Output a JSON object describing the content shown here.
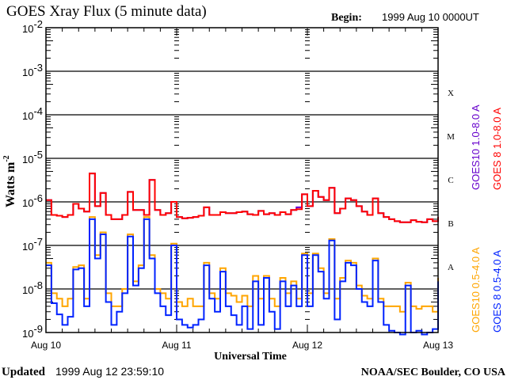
{
  "header": {
    "title": "GOES Xray Flux (5 minute data)",
    "begin_label": "Begin:",
    "begin_value": "1999 Aug 10 0000UT"
  },
  "footer": {
    "updated_label": "Updated",
    "updated_value": "1999 Aug 12 23:59:10",
    "credit": "NOAA/SEC Boulder, CO USA"
  },
  "colors": {
    "goes8_long": "#ff0000",
    "goes10_long": "#6600cc",
    "goes8_short": "#0022ff",
    "goes10_short": "#ffa500",
    "axis": "#000000"
  },
  "chart_data": {
    "type": "line",
    "title": "GOES Xray Flux (5 minute data)",
    "xlabel": "Universal Time",
    "ylabel": "Watts m",
    "ylabel_sup": "-2",
    "yscale": "log",
    "ylim": [
      1e-09,
      0.01
    ],
    "y_ticks": [
      {
        "base": "10",
        "exp": "-2"
      },
      {
        "base": "10",
        "exp": "-3"
      },
      {
        "base": "10",
        "exp": "-4"
      },
      {
        "base": "10",
        "exp": "-5"
      },
      {
        "base": "10",
        "exp": "-6"
      },
      {
        "base": "10",
        "exp": "-7"
      },
      {
        "base": "10",
        "exp": "-8"
      },
      {
        "base": "10",
        "exp": "-9"
      }
    ],
    "x_ticks": [
      "Aug 10",
      "Aug 11",
      "Aug 12",
      "Aug 13"
    ],
    "xlim": [
      "1999-08-10T00:00",
      "1999-08-13T00:00"
    ],
    "flare_classes": [
      "X",
      "M",
      "C",
      "B",
      "A"
    ],
    "grid": "horizontal lines at each decade",
    "legend_placement": "right, vertical",
    "x": [
      "1999-08-10T00:00",
      "1999-08-10T01:00",
      "1999-08-10T02:00",
      "1999-08-10T03:00",
      "1999-08-10T04:00",
      "1999-08-10T05:00",
      "1999-08-10T06:00",
      "1999-08-10T07:00",
      "1999-08-10T08:00",
      "1999-08-10T09:00",
      "1999-08-10T10:00",
      "1999-08-10T11:00",
      "1999-08-10T12:00",
      "1999-08-10T13:00",
      "1999-08-10T14:00",
      "1999-08-10T15:00",
      "1999-08-10T16:00",
      "1999-08-10T17:00",
      "1999-08-10T18:00",
      "1999-08-10T19:00",
      "1999-08-10T20:00",
      "1999-08-10T21:00",
      "1999-08-10T22:00",
      "1999-08-10T23:00",
      "1999-08-11T00:00",
      "1999-08-11T01:00",
      "1999-08-11T02:00",
      "1999-08-11T03:00",
      "1999-08-11T04:00",
      "1999-08-11T05:00",
      "1999-08-11T06:00",
      "1999-08-11T07:00",
      "1999-08-11T08:00",
      "1999-08-11T09:00",
      "1999-08-11T10:00",
      "1999-08-11T11:00",
      "1999-08-11T12:00",
      "1999-08-11T13:00",
      "1999-08-11T14:00",
      "1999-08-11T15:00",
      "1999-08-11T16:00",
      "1999-08-11T17:00",
      "1999-08-11T18:00",
      "1999-08-11T19:00",
      "1999-08-11T20:00",
      "1999-08-11T21:00",
      "1999-08-11T22:00",
      "1999-08-11T23:00",
      "1999-08-12T00:00",
      "1999-08-12T01:00",
      "1999-08-12T02:00",
      "1999-08-12T03:00",
      "1999-08-12T04:00",
      "1999-08-12T05:00",
      "1999-08-12T06:00",
      "1999-08-12T07:00",
      "1999-08-12T08:00",
      "1999-08-12T09:00",
      "1999-08-12T10:00",
      "1999-08-12T11:00",
      "1999-08-12T12:00",
      "1999-08-12T13:00",
      "1999-08-12T14:00",
      "1999-08-12T15:00",
      "1999-08-12T16:00",
      "1999-08-12T17:00",
      "1999-08-12T18:00",
      "1999-08-12T19:00",
      "1999-08-12T20:00",
      "1999-08-12T21:00",
      "1999-08-12T22:00",
      "1999-08-12T23:00",
      "1999-08-13T00:00"
    ],
    "series": [
      {
        "name": "GOES10 0.5-4.0 A",
        "color": "#ffa500",
        "values": [
          4e-08,
          8e-09,
          6e-09,
          4e-09,
          6e-09,
          3.2e-08,
          3.5e-08,
          6e-09,
          4.5e-07,
          6e-08,
          2e-07,
          8e-09,
          4e-09,
          4e-09,
          1e-08,
          1.8e-07,
          1.5e-08,
          3.5e-08,
          4.5e-07,
          6e-08,
          1e-08,
          8e-09,
          6e-09,
          1.1e-07,
          5e-09,
          4e-09,
          6e-09,
          4e-09,
          4e-09,
          4e-08,
          8e-09,
          6e-09,
          3e-08,
          8e-09,
          7e-09,
          5e-09,
          7e-09,
          4e-09,
          2e-08,
          6e-09,
          2e-08,
          6e-09,
          4e-09,
          1.8e-08,
          8e-09,
          1.5e-08,
          6e-09,
          6.5e-08,
          8e-09,
          6.5e-08,
          3e-08,
          8e-09,
          1.4e-07,
          6e-09,
          1.8e-08,
          4.5e-08,
          4e-08,
          1.2e-08,
          7e-09,
          6e-09,
          5e-08,
          6e-09,
          4e-09,
          4e-09,
          4e-09,
          3e-09,
          1.4e-08,
          4e-09,
          3.5e-09,
          4e-09,
          4e-09,
          3e-09,
          1.8e-08
        ]
      },
      {
        "name": "GOES 8 0.5-4.0 A",
        "color": "#0022ff",
        "values": [
          3.5e-08,
          4.7e-09,
          2.6e-09,
          1.5e-09,
          2.3e-09,
          2.8e-08,
          3e-08,
          4e-09,
          4e-07,
          5e-08,
          1.8e-07,
          5e-09,
          1.5e-09,
          3e-09,
          8e-09,
          1.6e-07,
          1.2e-08,
          3e-08,
          4e-07,
          5e-08,
          8e-09,
          4e-09,
          2.5e-09,
          1e-07,
          2e-09,
          1.5e-09,
          1.3e-09,
          1.5e-09,
          2e-09,
          3.5e-08,
          6e-09,
          3e-09,
          2.5e-08,
          4e-09,
          2.5e-09,
          1.5e-09,
          4e-09,
          1.2e-09,
          1.5e-08,
          1.5e-09,
          1.8e-08,
          3e-09,
          1.2e-09,
          1.5e-08,
          4e-09,
          1.2e-08,
          4e-09,
          6e-08,
          4e-09,
          6e-08,
          2.5e-08,
          6e-09,
          1.3e-07,
          2e-09,
          1.5e-08,
          4e-08,
          3.5e-08,
          1e-08,
          5e-09,
          4e-09,
          4.5e-08,
          5e-09,
          1.5e-09,
          1.1e-09,
          1e-09,
          9e-10,
          1.2e-08,
          1e-09,
          1.1e-09,
          9e-10,
          1e-09,
          1.2e-09,
          1.5e-08
        ]
      },
      {
        "name": "GOES10 1.0-8.0 A",
        "color": "#6600cc",
        "values": [
          1.1e-06,
          5e-07,
          4.8e-07,
          4.5e-07,
          5e-07,
          9e-07,
          7e-07,
          6e-07,
          4.5e-06,
          8e-07,
          1.6e-06,
          5e-07,
          4e-07,
          4e-07,
          5e-07,
          1.7e-06,
          6.5e-07,
          6.5e-07,
          5e-07,
          3.2e-06,
          6.5e-07,
          5e-07,
          5.5e-07,
          1e-06,
          4.5e-07,
          4.2e-07,
          4.3e-07,
          4.5e-07,
          4.8e-07,
          7.5e-07,
          5e-07,
          5e-07,
          5.8e-07,
          5.5e-07,
          5.5e-07,
          5.8e-07,
          6e-07,
          5.2e-07,
          5e-07,
          6.2e-07,
          5.2e-07,
          5.5e-07,
          5e-07,
          5.8e-07,
          5.2e-07,
          6.5e-07,
          7.5e-07,
          1.5e-06,
          8e-07,
          1.8e-06,
          1.3e-06,
          1.1e-06,
          2.1e-06,
          5.5e-07,
          7e-07,
          1.2e-06,
          1.1e-06,
          8e-07,
          6e-07,
          5e-07,
          1.2e-06,
          5.5e-07,
          4.5e-07,
          4e-07,
          3.6e-07,
          3.4e-07,
          3.4e-07,
          3.8e-07,
          3.5e-07,
          3.4e-07,
          4e-07,
          3.6e-07,
          4.5e-07
        ]
      },
      {
        "name": "GOES 8 1.0-8.0 A",
        "color": "#ff0000",
        "values": [
          1.1e-06,
          5e-07,
          4.8e-07,
          4.5e-07,
          5e-07,
          9e-07,
          7e-07,
          6e-07,
          4.5e-06,
          8e-07,
          1.6e-06,
          5e-07,
          4e-07,
          4e-07,
          5e-07,
          1.7e-06,
          6.5e-07,
          6.5e-07,
          5e-07,
          3.2e-06,
          6.5e-07,
          5e-07,
          5.5e-07,
          1e-06,
          4.5e-07,
          4.2e-07,
          4.3e-07,
          4.5e-07,
          4.8e-07,
          7.5e-07,
          5e-07,
          5e-07,
          5.8e-07,
          5.5e-07,
          5.5e-07,
          5.8e-07,
          6e-07,
          5.2e-07,
          5e-07,
          6.2e-07,
          5.2e-07,
          5.5e-07,
          5e-07,
          5.8e-07,
          5.2e-07,
          6.5e-07,
          6.8e-07,
          1.5e-06,
          8e-07,
          1.8e-06,
          1.3e-06,
          1.1e-06,
          2.1e-06,
          5.5e-07,
          7e-07,
          1.2e-06,
          1.1e-06,
          8e-07,
          6e-07,
          5e-07,
          1.2e-06,
          5.5e-07,
          4.5e-07,
          4e-07,
          3.6e-07,
          3.4e-07,
          3.4e-07,
          3.8e-07,
          3.5e-07,
          3.4e-07,
          4e-07,
          3.6e-07,
          4.5e-07
        ]
      }
    ]
  }
}
